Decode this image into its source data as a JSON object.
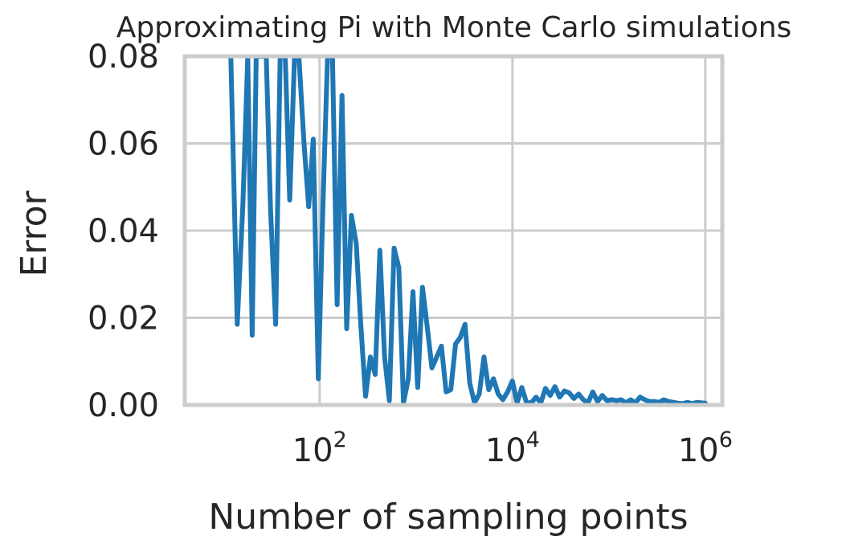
{
  "chart_data": {
    "type": "line",
    "title": "Approximating Pi with Monte Carlo simulations",
    "xlabel": "Number of sampling points",
    "ylabel": "Error",
    "xscale": "log",
    "xlim": [
      4,
      1500000
    ],
    "ylim": [
      0,
      0.08
    ],
    "xticks": [
      {
        "value": 100,
        "base": "10",
        "exp": "2"
      },
      {
        "value": 10000,
        "base": "10",
        "exp": "4"
      },
      {
        "value": 1000000,
        "base": "10",
        "exp": "6"
      }
    ],
    "yticks": [
      {
        "value": 0,
        "label": "0.00"
      },
      {
        "value": 0.02,
        "label": "0.02"
      },
      {
        "value": 0.04,
        "label": "0.04"
      },
      {
        "value": 0.06,
        "label": "0.06"
      },
      {
        "value": 0.08,
        "label": "0.08"
      }
    ],
    "grid": true,
    "line_color": "#1f77b4",
    "series": [
      {
        "x": [
          12,
          14,
          16,
          18,
          20,
          22,
          25,
          28,
          31,
          35,
          39,
          44,
          49,
          55,
          61,
          69,
          77,
          86,
          97,
          108,
          121,
          136,
          152,
          171,
          191,
          214,
          240,
          268,
          300,
          336,
          377,
          422,
          472,
          529,
          592,
          663,
          742,
          831,
          930,
          1042,
          1166,
          1306,
          1462,
          1637,
          1833,
          2052,
          2297,
          2572,
          2880,
          3224,
          3610,
          4042,
          4525,
          5067,
          5672,
          6351,
          7111,
          7961,
          8913,
          9980,
          11173,
          12510,
          14006,
          15682,
          17558,
          19658,
          22009,
          24642,
          27589,
          30890,
          34585,
          38722,
          43354,
          48540,
          54347,
          60848,
          68127,
          76277,
          85401,
          95616,
          107054,
          119860,
          134198,
          150251,
          168224,
          188347,
          210878,
          236103,
          264346,
          295968,
          331372,
          371011,
          415392,
          465082,
          520716,
          583004,
          652745,
          730828,
          818250,
          1000000
        ],
        "y": [
          0.08,
          0.0185,
          0.046,
          0.08,
          0.016,
          0.08,
          0.08,
          0.08,
          0.045,
          0.0185,
          0.08,
          0.08,
          0.047,
          0.08,
          0.08,
          0.06,
          0.0455,
          0.061,
          0.006,
          0.045,
          0.08,
          0.08,
          0.023,
          0.071,
          0.0175,
          0.0435,
          0.037,
          0.018,
          0.002,
          0.011,
          0.007,
          0.0355,
          0.011,
          0.001,
          0.036,
          0.0315,
          0.0005,
          0.006,
          0.026,
          0.004,
          0.027,
          0.018,
          0.0085,
          0.011,
          0.0135,
          0.003,
          0.0035,
          0.014,
          0.0155,
          0.0185,
          0.005,
          0.0005,
          0.0025,
          0.011,
          0.0035,
          0.006,
          0.0025,
          0.0012,
          0.003,
          0.0055,
          0.0005,
          0.004,
          0.0005,
          0.0005,
          0.0018,
          0.0005,
          0.0038,
          0.0022,
          0.0042,
          0.0018,
          0.0032,
          0.0028,
          0.0015,
          0.0025,
          0.0012,
          0.0005,
          0.003,
          0.0008,
          0.0022,
          0.001,
          0.0012,
          0.001,
          0.0012,
          0.0005,
          0.0012,
          0.0005,
          0.0018,
          0.0012,
          0.0008,
          0.0008,
          0.0006,
          0.0012,
          0.0008,
          0.0006,
          0.0004,
          0.0003,
          0.0006,
          0.0003,
          0.0006,
          0.0004
        ]
      }
    ]
  }
}
